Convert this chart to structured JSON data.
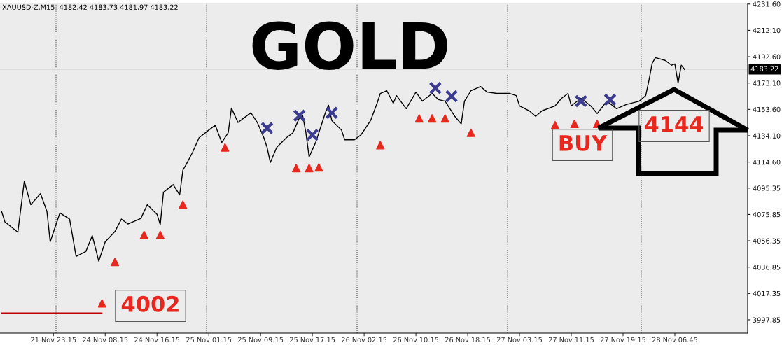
{
  "chart_data": {
    "type": "line",
    "title": "GOLD",
    "annotations": [
      "XAUUSD-Z,M15  4182.42 4183.73 4181.97 4183.22",
      "4002",
      "BUY",
      "4144"
    ],
    "categories": [
      null,
      null,
      null,
      null,
      null,
      null,
      null,
      null,
      null,
      null,
      null,
      null,
      null,
      null,
      null,
      null,
      "21 Nov 23:15",
      null,
      null,
      null,
      null,
      null,
      null,
      null,
      null,
      null,
      null,
      null,
      null,
      null,
      null,
      null,
      "24 Nov 08:15",
      null,
      null,
      null,
      null,
      null,
      null,
      null,
      null,
      null,
      null,
      null,
      null,
      null,
      null,
      null,
      "24 Nov 16:15",
      null,
      null,
      null,
      null,
      null,
      null,
      null,
      null,
      null,
      null,
      null,
      null,
      null,
      null,
      null,
      "25 Nov 01:15",
      null,
      null,
      null,
      null,
      null,
      null,
      null,
      null,
      null,
      null,
      null,
      null,
      null,
      null,
      null,
      "25 Nov 09:15",
      null,
      null,
      null,
      null,
      null,
      null,
      null,
      null,
      null,
      null,
      null,
      null,
      null,
      null,
      null,
      "25 Nov 17:15",
      null,
      null,
      null,
      null,
      null,
      null,
      null,
      null,
      null,
      null,
      null,
      null,
      null,
      null,
      null,
      "26 Nov 02:15",
      null,
      null,
      null,
      null,
      null,
      null,
      null,
      null,
      null,
      null,
      null,
      null,
      null,
      null,
      null,
      "26 Nov 10:15",
      null,
      null,
      null,
      null,
      null,
      null,
      null,
      null,
      null,
      null,
      null,
      null,
      null,
      null,
      null,
      "26 Nov 18:15",
      null,
      null,
      null,
      null,
      null,
      null,
      null,
      null,
      null,
      null,
      null,
      null,
      null,
      null,
      null,
      "27 Nov 03:15",
      null,
      null,
      null,
      null,
      null,
      null,
      null,
      null,
      null,
      null,
      null,
      null,
      null,
      null,
      null,
      "27 Nov 11:15",
      null,
      null,
      null,
      null,
      null,
      null,
      null,
      null,
      null,
      null,
      null,
      null,
      null,
      null,
      null,
      "27 Nov 19:15",
      null,
      null,
      null,
      null,
      null,
      null,
      null,
      null,
      null,
      null,
      null,
      null,
      null,
      null,
      null,
      "28 Nov 06:45",
      null,
      null,
      null,
      null,
      null,
      null,
      null,
      null,
      null,
      null,
      null,
      null,
      null,
      null,
      null,
      null,
      null,
      null,
      null,
      null,
      null,
      null
    ],
    "ylim": [
      3988,
      4232
    ],
    "yticks": [
      {
        "value": 3997.85,
        "label": "3997.85"
      },
      {
        "value": 4017.35,
        "label": "4017.35"
      },
      {
        "value": 4036.85,
        "label": "4036.85"
      },
      {
        "value": 4056.35,
        "label": "4056.35"
      },
      {
        "value": 4075.85,
        "label": "4075.85"
      },
      {
        "value": 4095.35,
        "label": "4095.35"
      },
      {
        "value": 4114.6,
        "label": "4114.60"
      },
      {
        "value": 4134.1,
        "label": "4134.10"
      },
      {
        "value": 4153.6,
        "label": "4153.60"
      },
      {
        "value": 4173.1,
        "label": "4173.10"
      },
      {
        "value": 4192.6,
        "label": "4192.60"
      },
      {
        "value": 4212.1,
        "label": "4212.10"
      },
      {
        "value": 4231.6,
        "label": "4231.60"
      }
    ],
    "ref_lines": [
      {
        "axis": "y",
        "value": 4183.22,
        "label": "4183.22",
        "color": "#d9d9d9",
        "line_style": "solid"
      }
    ],
    "series": [
      {
        "color": "#000000",
        "marker": "none",
        "values": [
          4078.0,
          4070.4,
          null,
          null,
          null,
          4062.7,
          null,
          4100.5,
          null,
          4083.1,
          null,
          null,
          4091.3,
          null,
          4078.0,
          4055.6,
          null,
          null,
          4077.0,
          null,
          null,
          4072.4,
          null,
          4044.8,
          null,
          null,
          4048.4,
          null,
          4060.2,
          null,
          4041.3,
          null,
          4055.6,
          null,
          null,
          4063.2,
          null,
          4072.4,
          null,
          4068.8,
          null,
          null,
          null,
          4072.9,
          null,
          4083.1,
          null,
          null,
          4076.0,
          4068.3,
          4092.3,
          null,
          null,
          4097.9,
          null,
          4090.3,
          4108.7,
          4112.8,
          null,
          4121.9,
          null,
          4132.7,
          null,
          null,
          4138.3,
          null,
          4141.9,
          null,
          4129.1,
          null,
          4136.3,
          4154.6,
          null,
          4143.9,
          null,
          4147.5,
          null,
          4151.1,
          null,
          4143.9,
          null,
          4132.7,
          4125.5,
          4114.3,
          null,
          4125.5,
          null,
          null,
          4132.7,
          null,
          4136.3,
          null,
          4147.5,
          4149.0,
          4136.3,
          4118.4,
          null,
          4129.1,
          4136.3,
          null,
          4151.1,
          4156.7,
          4145.4,
          null,
          null,
          4138.3,
          4131.1,
          null,
          null,
          4131.1,
          null,
          4134.7,
          null,
          null,
          4145.4,
          null,
          4158.2,
          4165.4,
          null,
          4167.4,
          null,
          4158.2,
          4163.8,
          null,
          null,
          4154.1,
          null,
          null,
          4166.4,
          null,
          4159.7,
          null,
          null,
          4165.4,
          null,
          4160.8,
          null,
          4159.7,
          null,
          null,
          4148.5,
          null,
          4142.9,
          4159.7,
          null,
          4167.4,
          null,
          null,
          4170.5,
          null,
          4166.4,
          null,
          null,
          4165.4,
          null,
          null,
          null,
          4165.4,
          null,
          4163.8,
          4156.2,
          null,
          null,
          4152.6,
          null,
          4148.5,
          null,
          4152.6,
          null,
          null,
          null,
          4156.2,
          null,
          4161.8,
          null,
          4165.4,
          4156.2,
          null,
          null,
          4161.8,
          null,
          null,
          4156.2,
          null,
          4150.5,
          null,
          null,
          4159.7,
          null,
          null,
          4154.1,
          null,
          null,
          4157.2,
          null,
          null,
          null,
          4159.7,
          null,
          4163.8,
          4175.1,
          4187.8,
          4191.9,
          null,
          null,
          4189.9,
          null,
          4186.3,
          4187.3,
          4173.0,
          4186.3,
          4183.2,
          null,
          null,
          null,
          null,
          null,
          null,
          null,
          null,
          null,
          null,
          null,
          null,
          null,
          null,
          null,
          null,
          null,
          null,
          null
        ]
      },
      {
        "color": "#c00000",
        "marker": "none",
        "values": [
          4002.9,
          null,
          null,
          null,
          null,
          null,
          null,
          null,
          null,
          null,
          null,
          null,
          null,
          null,
          null,
          null,
          null,
          null,
          null,
          null,
          null,
          null,
          null,
          null,
          null,
          null,
          null,
          null,
          null,
          null,
          null,
          4002.9,
          null,
          null,
          null,
          null,
          null,
          null,
          null,
          null,
          null,
          null,
          null,
          null,
          null,
          null,
          null,
          null,
          null,
          null,
          null,
          null,
          null,
          null,
          null,
          null,
          null,
          null,
          null,
          null,
          null,
          null,
          null,
          null,
          null,
          null,
          null,
          null,
          null,
          null,
          null,
          null,
          null,
          null,
          null,
          null,
          null,
          null,
          null,
          null,
          null,
          null,
          null,
          null,
          null,
          null,
          null,
          null,
          null,
          null,
          null,
          null,
          null,
          null,
          null,
          null,
          null,
          null,
          null,
          null,
          null,
          null,
          null,
          null,
          null,
          null,
          null,
          null,
          null,
          null,
          null,
          null,
          null,
          null,
          null,
          null,
          null,
          null,
          null,
          null,
          null,
          null,
          null,
          null,
          null,
          null,
          null,
          null,
          null,
          null,
          null,
          null,
          null,
          null,
          null,
          null,
          null,
          null,
          null,
          null,
          null,
          null,
          null,
          null,
          null,
          null,
          null,
          null,
          null,
          null,
          null,
          null,
          null,
          null,
          null,
          null,
          null,
          null,
          null,
          null,
          null,
          null,
          null,
          null,
          null,
          null,
          null,
          null,
          null,
          null,
          null,
          null,
          null,
          null,
          null,
          null,
          null,
          null,
          null,
          null,
          null,
          null,
          null,
          null,
          null,
          null,
          null,
          null,
          null,
          null,
          null,
          null,
          null,
          null,
          null,
          null,
          null,
          null,
          null,
          null,
          null,
          null,
          null,
          null,
          null,
          null,
          null,
          null,
          null,
          null,
          null,
          null,
          null,
          null,
          null,
          null,
          null,
          null,
          null,
          null,
          null,
          null,
          null,
          null,
          null,
          null,
          null,
          null,
          null,
          null,
          null
        ]
      },
      {
        "type": "scatter",
        "color": "#3b3b8f",
        "marker": "cross",
        "values": [
          null,
          null,
          null,
          null,
          null,
          null,
          null,
          null,
          null,
          null,
          null,
          null,
          null,
          null,
          null,
          null,
          null,
          null,
          null,
          null,
          null,
          null,
          null,
          null,
          null,
          null,
          null,
          null,
          null,
          null,
          null,
          null,
          null,
          null,
          null,
          null,
          null,
          null,
          null,
          null,
          null,
          null,
          null,
          null,
          null,
          null,
          null,
          null,
          null,
          null,
          null,
          null,
          null,
          null,
          null,
          null,
          null,
          null,
          null,
          null,
          null,
          null,
          null,
          null,
          null,
          null,
          null,
          null,
          null,
          null,
          null,
          null,
          null,
          null,
          null,
          null,
          null,
          null,
          null,
          null,
          null,
          null,
          4139.8,
          null,
          null,
          null,
          null,
          null,
          null,
          null,
          null,
          null,
          4149.0,
          null,
          null,
          null,
          4134.7,
          null,
          null,
          null,
          null,
          null,
          4151.1,
          null,
          null,
          null,
          null,
          null,
          null,
          null,
          null,
          null,
          null,
          null,
          null,
          null,
          null,
          null,
          null,
          null,
          null,
          null,
          null,
          null,
          null,
          null,
          null,
          null,
          null,
          null,
          null,
          null,
          null,
          null,
          4169.4,
          null,
          null,
          null,
          null,
          4163.3,
          null,
          null,
          null,
          null,
          null,
          null,
          null,
          null,
          null,
          null,
          null,
          null,
          null,
          null,
          null,
          null,
          null,
          null,
          null,
          null,
          null,
          null,
          null,
          null,
          null,
          null,
          null,
          null,
          null,
          null,
          null,
          null,
          null,
          null,
          null,
          null,
          null,
          null,
          null,
          4159.7,
          null,
          null,
          null,
          null,
          null,
          null,
          null,
          null,
          4160.8,
          null,
          null,
          null,
          null,
          null,
          null,
          null,
          null,
          null,
          null,
          null,
          null,
          null,
          null,
          null,
          null,
          null,
          null,
          null,
          null,
          null,
          null,
          null,
          null,
          null,
          null,
          null,
          null,
          null,
          null,
          null,
          null,
          null,
          null,
          null,
          null,
          null,
          null,
          null,
          null,
          null,
          null
        ]
      },
      {
        "type": "scatter",
        "color": "#e8281e",
        "marker": "triangle",
        "values": [
          null,
          null,
          null,
          null,
          null,
          null,
          null,
          null,
          null,
          null,
          null,
          null,
          null,
          null,
          null,
          null,
          null,
          null,
          null,
          null,
          null,
          null,
          null,
          null,
          null,
          null,
          null,
          null,
          null,
          null,
          null,
          4010.1,
          null,
          null,
          null,
          4040.8,
          null,
          null,
          null,
          null,
          null,
          null,
          null,
          null,
          4060.7,
          null,
          null,
          null,
          null,
          4060.7,
          null,
          null,
          null,
          null,
          null,
          null,
          4083.1,
          null,
          null,
          null,
          null,
          null,
          null,
          null,
          null,
          null,
          null,
          null,
          null,
          4125.5,
          null,
          null,
          null,
          null,
          null,
          null,
          null,
          null,
          null,
          null,
          null,
          null,
          null,
          null,
          null,
          null,
          null,
          null,
          null,
          null,
          null,
          4110.2,
          null,
          null,
          null,
          4110.2,
          null,
          null,
          4110.7,
          null,
          null,
          null,
          null,
          null,
          null,
          null,
          null,
          null,
          null,
          null,
          null,
          null,
          null,
          null,
          null,
          null,
          null,
          4127.1,
          null,
          null,
          null,
          null,
          null,
          null,
          null,
          null,
          null,
          null,
          null,
          4147.0,
          null,
          null,
          null,
          4147.0,
          null,
          null,
          null,
          4147.0,
          null,
          null,
          null,
          null,
          null,
          null,
          null,
          4136.3,
          null,
          null,
          null,
          null,
          null,
          null,
          null,
          null,
          null,
          null,
          null,
          null,
          null,
          null,
          null,
          null,
          null,
          null,
          null,
          null,
          null,
          null,
          null,
          null,
          null,
          4141.9,
          null,
          null,
          null,
          null,
          null,
          4142.9,
          null,
          null,
          null,
          null,
          null,
          null,
          4142.9,
          null,
          null,
          null,
          null,
          null,
          null,
          null,
          null,
          null,
          null,
          null,
          null,
          null,
          null,
          null,
          null,
          null,
          null,
          null,
          null,
          null,
          null,
          null,
          null,
          null,
          null,
          null,
          null,
          null,
          null,
          null,
          null,
          null,
          null,
          null,
          null,
          null,
          null,
          null,
          null,
          null,
          null,
          null,
          null,
          null,
          null
        ]
      }
    ]
  }
}
